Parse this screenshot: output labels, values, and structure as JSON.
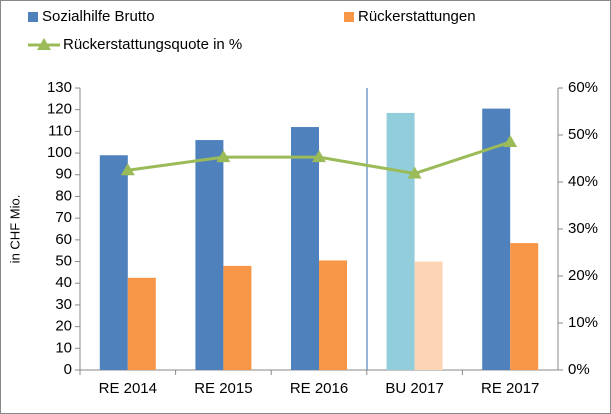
{
  "chart_data": {
    "type": "bar_line",
    "categories": [
      "RE 2014",
      "RE 2015",
      "RE 2016",
      "BU 2017",
      "RE 2017"
    ],
    "ylabel": "in CHF Mio.",
    "ylim": [
      0,
      130
    ],
    "yticks": [
      0,
      10,
      20,
      30,
      40,
      50,
      60,
      70,
      80,
      90,
      100,
      110,
      120,
      130
    ],
    "y2lim": [
      0,
      60
    ],
    "y2ticks": [
      {
        "value": 0,
        "label": "0%"
      },
      {
        "value": 10,
        "label": "10%"
      },
      {
        "value": 20,
        "label": "20%"
      },
      {
        "value": 30,
        "label": "30%"
      },
      {
        "value": 40,
        "label": "40%"
      },
      {
        "value": 50,
        "label": "50%"
      },
      {
        "value": 60,
        "label": "60%"
      }
    ],
    "series": [
      {
        "name": "Sozialhilfe Brutto",
        "type": "bar",
        "color": "#4f81bd",
        "colors": [
          "#4f81bd",
          "#4f81bd",
          "#4f81bd",
          "#92cddc",
          "#4f81bd"
        ],
        "values": [
          99,
          106,
          112,
          118.5,
          120.5
        ]
      },
      {
        "name": "Rückerstattungen",
        "type": "bar",
        "color": "#f79646",
        "colors": [
          "#f79646",
          "#f79646",
          "#f79646",
          "#fcd5b5",
          "#f79646"
        ],
        "values": [
          42.5,
          48,
          50.5,
          50,
          58.5
        ]
      },
      {
        "name": "Rückerstattungsquote in %",
        "type": "line",
        "axis": "y2",
        "color": "#9bbb59",
        "values": [
          42.5,
          45.3,
          45.3,
          41.8,
          48.5
        ]
      }
    ]
  }
}
